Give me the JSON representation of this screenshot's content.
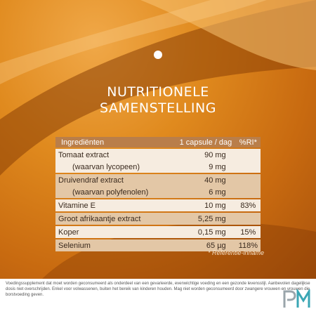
{
  "title": {
    "line1": "NUTRITIONELE",
    "line2": "SAMENSTELLING"
  },
  "table": {
    "headers": {
      "ingredient": "Ingrediënten",
      "dose": "1 capsule / dag",
      "ri": "%RI*"
    },
    "rows": [
      {
        "ingredient": "Tomaat extract",
        "dose": "90 mg",
        "ri": ""
      },
      {
        "ingredient": "(waarvan lycopeen)",
        "dose": "9 mg",
        "ri": ""
      },
      {
        "ingredient": "Druivendraf extract",
        "dose": "40 mg",
        "ri": ""
      },
      {
        "ingredient": "(waarvan polyfenolen)",
        "dose": "6 mg",
        "ri": ""
      },
      {
        "ingredient": "Vitamine E",
        "dose": "10 mg",
        "ri": "83%"
      },
      {
        "ingredient": "Groot afrikaantje extract",
        "dose": "5,25 mg",
        "ri": ""
      },
      {
        "ingredient": "Koper",
        "dose": "0,15 mg",
        "ri": "15%"
      },
      {
        "ingredient": "Selenium",
        "dose": "65 µg",
        "ri": "118%"
      }
    ]
  },
  "reference_note": "* Referentie-inname",
  "footnote": "Voedingssupplement dat moet worden geconsumeerd als onderdeel van een gevarieerde, evenwichtige voeding en een gezonde levensstijl. Aanbevolen dagelijkse dosis niet overschrijden. Enkel voor volwassenen, buiten het bereik van kinderen houden. Mag niet worden geconsumeerd door zwangere vrouwen en vrouwen die borstvoeding geven.",
  "logo_text": "PM",
  "colors": {
    "orange_dark": "#a8520c",
    "orange": "#e08a1e",
    "header_brown": "#b97e4a",
    "row_light": "#f6ece0",
    "row_dark": "#e3c7a6",
    "logo_teal": "#3aa6b4"
  }
}
